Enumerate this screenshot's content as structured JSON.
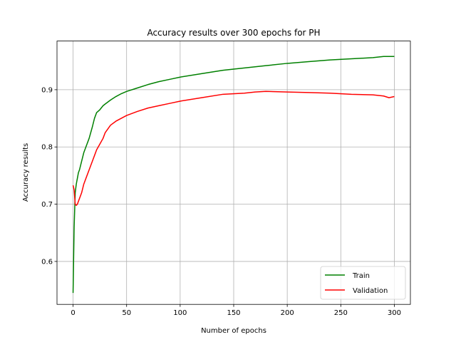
{
  "chart_data": {
    "type": "line",
    "title": "Accuracy results over 300 epochs for PH",
    "xlabel": "Number of epochs",
    "ylabel": "Accuracy results",
    "xlim": [
      -15,
      315
    ],
    "ylim": [
      0.525,
      0.985
    ],
    "xticks": [
      0,
      50,
      100,
      150,
      200,
      250,
      300
    ],
    "yticks": [
      0.6,
      0.7,
      0.8,
      0.9
    ],
    "xtick_labels": [
      "0",
      "50",
      "100",
      "150",
      "200",
      "250",
      "300"
    ],
    "ytick_labels": [
      "0.6",
      "0.7",
      "0.8",
      "0.9"
    ],
    "grid": true,
    "legend_position": "lower-right",
    "series": [
      {
        "name": "Train",
        "color": "#008000",
        "x": [
          0,
          1,
          2,
          3,
          4,
          5,
          6,
          8,
          10,
          12,
          15,
          18,
          20,
          22,
          25,
          28,
          30,
          35,
          40,
          45,
          50,
          60,
          70,
          80,
          90,
          100,
          120,
          140,
          160,
          180,
          200,
          220,
          240,
          260,
          280,
          290,
          300
        ],
        "y": [
          0.545,
          0.66,
          0.72,
          0.735,
          0.745,
          0.755,
          0.76,
          0.775,
          0.79,
          0.8,
          0.815,
          0.835,
          0.85,
          0.86,
          0.865,
          0.872,
          0.875,
          0.882,
          0.888,
          0.893,
          0.897,
          0.903,
          0.909,
          0.914,
          0.918,
          0.922,
          0.928,
          0.934,
          0.938,
          0.942,
          0.946,
          0.949,
          0.952,
          0.954,
          0.956,
          0.958,
          0.958
        ]
      },
      {
        "name": "Validation",
        "color": "#ff0000",
        "x": [
          0,
          1,
          2,
          3,
          4,
          5,
          6,
          8,
          10,
          12,
          15,
          18,
          20,
          22,
          25,
          28,
          30,
          35,
          40,
          45,
          50,
          60,
          70,
          80,
          90,
          100,
          120,
          140,
          160,
          170,
          180,
          200,
          220,
          240,
          260,
          280,
          290,
          295,
          300
        ],
        "y": [
          0.733,
          0.725,
          0.7,
          0.698,
          0.7,
          0.705,
          0.71,
          0.72,
          0.735,
          0.745,
          0.76,
          0.775,
          0.785,
          0.795,
          0.805,
          0.815,
          0.825,
          0.838,
          0.845,
          0.85,
          0.855,
          0.862,
          0.868,
          0.872,
          0.876,
          0.88,
          0.886,
          0.892,
          0.894,
          0.896,
          0.897,
          0.896,
          0.895,
          0.894,
          0.892,
          0.891,
          0.889,
          0.886,
          0.888
        ]
      }
    ]
  }
}
